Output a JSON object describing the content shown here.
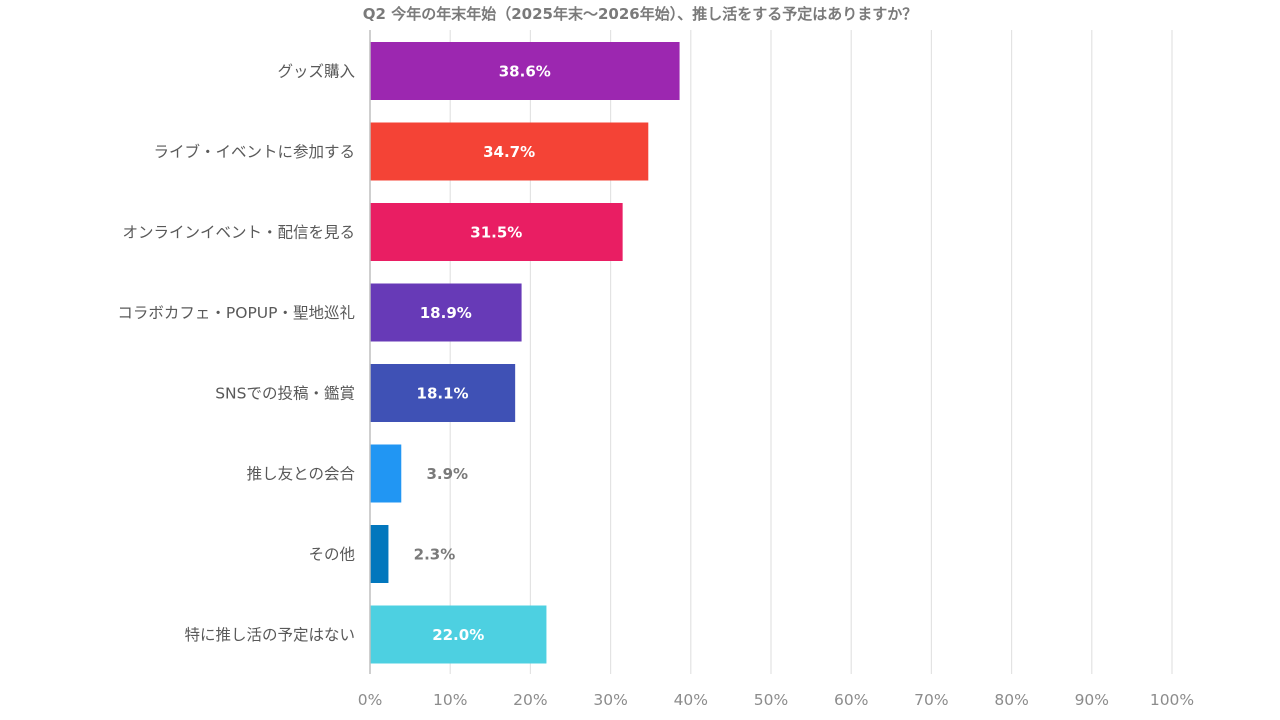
{
  "chart_data": {
    "type": "bar",
    "orientation": "horizontal",
    "title": "Q2 今年の年末年始（2025年末〜2026年始）、推し活をする予定はありますか？",
    "categories": [
      "グッズ購入",
      "ライブ・イベントに参加する",
      "オンラインイベント・配信を見る",
      "コラボカフェ・POPUP・聖地巡礼",
      "SNSでの投稿・鑑賞",
      "推し友との会合",
      "その他",
      "特に推し活の予定はない"
    ],
    "values": [
      38.6,
      34.7,
      31.5,
      18.9,
      18.1,
      3.9,
      2.3,
      22.0
    ],
    "value_labels": [
      "38.6%",
      "34.7%",
      "31.5%",
      "18.9%",
      "18.1%",
      "3.9%",
      "2.3%",
      "22.0%"
    ],
    "bar_colors": [
      "#9c27b0",
      "#f44336",
      "#e91e63",
      "#673ab7",
      "#3f51b5",
      "#2196f3",
      "#0277bd",
      "#4dd0e1"
    ],
    "xlim": [
      0,
      100
    ],
    "x_ticks": [
      0,
      10,
      20,
      30,
      40,
      50,
      60,
      70,
      80,
      90,
      100
    ],
    "x_tick_labels": [
      "0%",
      "10%",
      "20%",
      "30%",
      "40%",
      "50%",
      "60%",
      "70%",
      "80%",
      "90%",
      "100%"
    ],
    "xlabel": "",
    "ylabel": "",
    "grid": true,
    "legend": "none",
    "colors": {
      "title": "#7a7a7a",
      "category_text": "#595959",
      "tick_text": "#8c8c8c",
      "inside_label": "#ffffff",
      "outside_label": "#7a7a7a",
      "grid": "#e3e3e3",
      "axis": "#bfbfbf"
    }
  }
}
